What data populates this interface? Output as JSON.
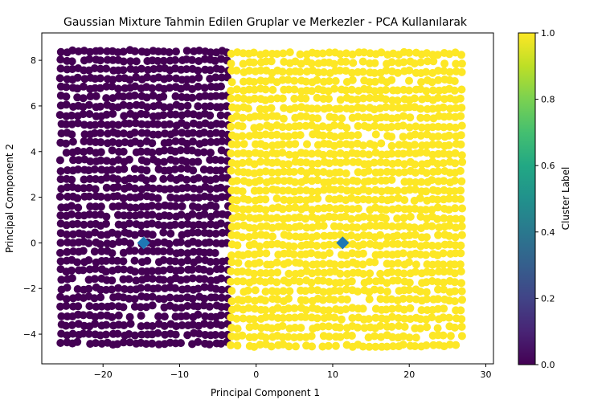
{
  "chart_data": {
    "type": "scatter",
    "title": "Gaussian Mixture Tahmin Edilen Gruplar ve Merkezler - PCA Kullanılarak",
    "xlabel": "Principal Component 1",
    "ylabel": "Principal Component 2",
    "xlim": [
      -28,
      31
    ],
    "ylim": [
      -5.3,
      9.2
    ],
    "x_ticks": [
      -20,
      -10,
      0,
      10,
      20,
      30
    ],
    "y_ticks": [
      -4,
      -2,
      0,
      2,
      4,
      6,
      8
    ],
    "grid": false,
    "clusters": [
      {
        "label": 0,
        "x_range": [
          -25.5,
          -3.2
        ],
        "y_range": [
          -4.4,
          8.4
        ],
        "color": "#440154"
      },
      {
        "label": 1,
        "x_range": [
          -3.2,
          27.5
        ],
        "y_range": [
          -4.5,
          8.4
        ],
        "color": "#fde725"
      }
    ],
    "centers": [
      {
        "x": -14.7,
        "y": 0.0
      },
      {
        "x": 11.3,
        "y": 0.0
      }
    ],
    "center_color": "#1f77b4",
    "colorbar": {
      "label": "Cluster Label",
      "range": [
        0.0,
        1.0
      ],
      "ticks": [
        "0.0",
        "0.2",
        "0.4",
        "0.6",
        "0.8",
        "1.0"
      ],
      "colormap": "viridis"
    }
  }
}
